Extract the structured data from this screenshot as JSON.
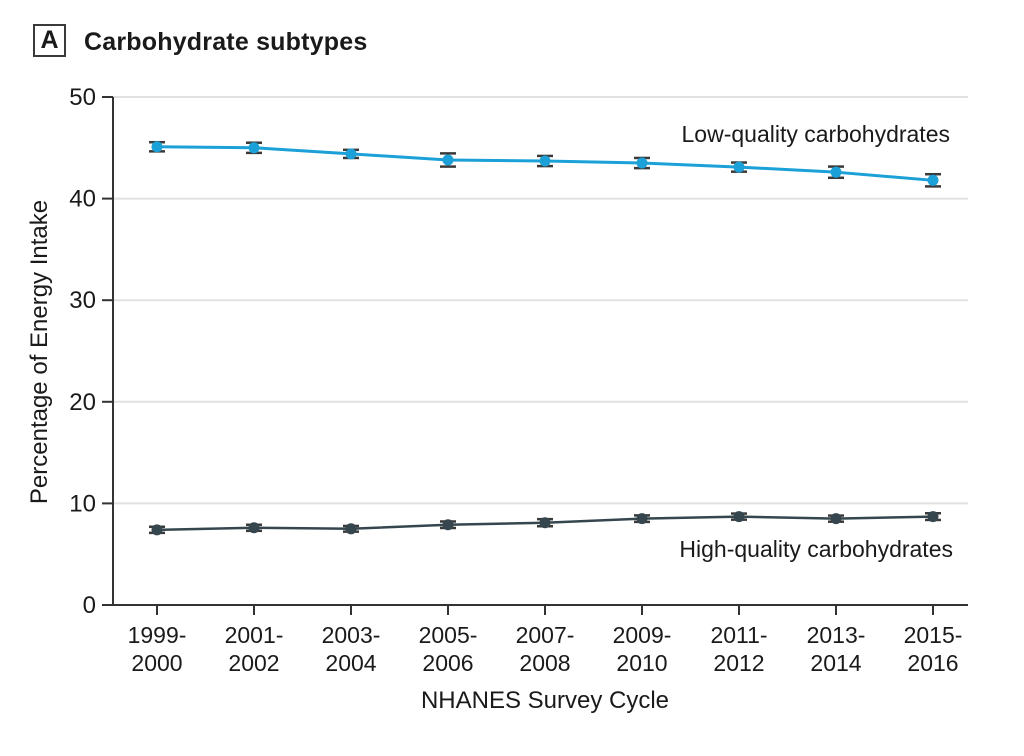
{
  "panel": {
    "label": "A",
    "title": "Carbohydrate subtypes"
  },
  "chart_data": {
    "type": "line",
    "title": "Carbohydrate subtypes",
    "xlabel": "NHANES Survey Cycle",
    "ylabel": "Percentage of Energy Intake",
    "ylim": [
      0,
      50
    ],
    "yticks": [
      0,
      10,
      20,
      30,
      40,
      50
    ],
    "grid": "horizontal-light-gray",
    "legend_position": "inline-annotations-right",
    "categories": [
      "1999-2000",
      "2001-2002",
      "2003-2004",
      "2005-2006",
      "2007-2008",
      "2009-2010",
      "2011-2012",
      "2013-2014",
      "2015-2016"
    ],
    "series": [
      {
        "name": "Low-quality carbohydrates",
        "color": "#1BA0D7",
        "marker": "circle",
        "values": [
          45.1,
          45.0,
          44.4,
          43.8,
          43.7,
          43.5,
          43.1,
          42.6,
          41.8
        ],
        "errors": [
          0.45,
          0.5,
          0.4,
          0.65,
          0.5,
          0.5,
          0.45,
          0.55,
          0.6
        ],
        "label_placement": "above-right"
      },
      {
        "name": "High-quality carbohydrates",
        "color": "#35464E",
        "marker": "circle",
        "values": [
          7.4,
          7.6,
          7.5,
          7.9,
          8.1,
          8.5,
          8.7,
          8.5,
          8.7
        ],
        "errors": [
          0.3,
          0.3,
          0.28,
          0.32,
          0.35,
          0.32,
          0.3,
          0.3,
          0.33
        ],
        "label_placement": "below-right"
      }
    ],
    "error_bar_color": "#3a3a3a"
  }
}
